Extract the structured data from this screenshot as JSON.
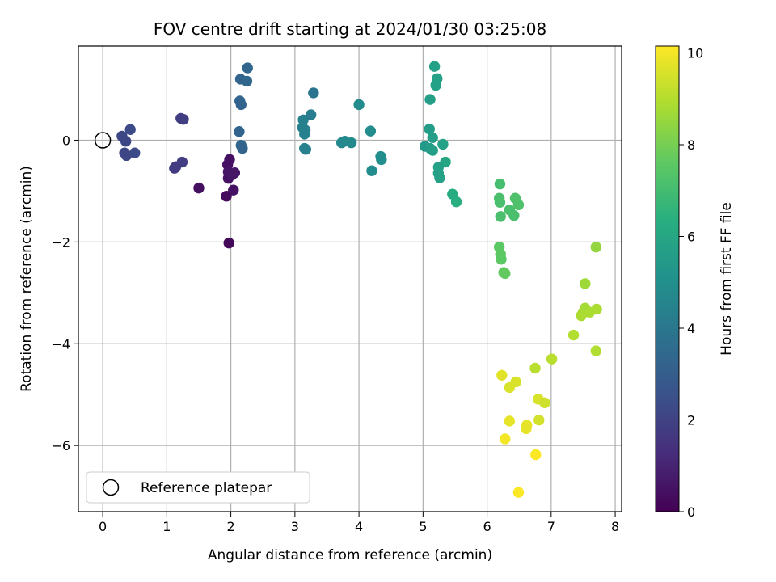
{
  "chart_data": {
    "type": "scatter",
    "title": "FOV centre drift starting at 2024/01/30 03:25:08",
    "xlabel": "Angular distance from reference (arcmin)",
    "ylabel": "Rotation from reference (arcmin)",
    "xlim": [
      -0.38,
      8.1
    ],
    "ylim": [
      -7.3,
      1.85
    ],
    "xticks": [
      0,
      1,
      2,
      3,
      4,
      5,
      6,
      7,
      8
    ],
    "yticks": [
      -6,
      -4,
      -2,
      0
    ],
    "grid": true,
    "legend": {
      "placement": "lower-left",
      "entries": [
        {
          "label": "Reference platepar",
          "marker": "open-circle"
        }
      ]
    },
    "reference_point": {
      "x": 0,
      "y": 0
    },
    "colorbar": {
      "label": "Hours from first FF file",
      "range": [
        0,
        10.15
      ],
      "ticks": [
        0,
        2,
        4,
        6,
        8,
        10
      ],
      "colormap": "viridis"
    },
    "points": [
      {
        "x": 0.3,
        "y": 0.08,
        "c": 2.2
      },
      {
        "x": 0.43,
        "y": 0.21,
        "c": 2.3
      },
      {
        "x": 0.36,
        "y": -0.02,
        "c": 2.2
      },
      {
        "x": 0.34,
        "y": -0.25,
        "c": 2.2
      },
      {
        "x": 0.37,
        "y": -0.3,
        "c": 2.2
      },
      {
        "x": 0.5,
        "y": -0.25,
        "c": 2.3
      },
      {
        "x": 1.22,
        "y": 0.43,
        "c": 1.9
      },
      {
        "x": 1.26,
        "y": 0.41,
        "c": 1.9
      },
      {
        "x": 1.24,
        "y": -0.43,
        "c": 1.9
      },
      {
        "x": 1.14,
        "y": -0.52,
        "c": 1.8
      },
      {
        "x": 1.12,
        "y": -0.55,
        "c": 1.8
      },
      {
        "x": 1.5,
        "y": -0.94,
        "c": 0.4
      },
      {
        "x": 1.98,
        "y": -0.38,
        "c": 0.5
      },
      {
        "x": 1.95,
        "y": -0.48,
        "c": 0.5
      },
      {
        "x": 1.96,
        "y": -0.62,
        "c": 0.6
      },
      {
        "x": 1.96,
        "y": -0.75,
        "c": 0.5
      },
      {
        "x": 2.02,
        "y": -0.68,
        "c": 0.6
      },
      {
        "x": 2.06,
        "y": -0.64,
        "c": 0.6
      },
      {
        "x": 2.04,
        "y": -0.98,
        "c": 0.5
      },
      {
        "x": 1.93,
        "y": -1.1,
        "c": 0.3
      },
      {
        "x": 1.97,
        "y": -2.02,
        "c": 0.2
      },
      {
        "x": 2.26,
        "y": 1.42,
        "c": 3.4
      },
      {
        "x": 2.15,
        "y": 1.2,
        "c": 3.3
      },
      {
        "x": 2.25,
        "y": 1.16,
        "c": 3.4
      },
      {
        "x": 2.14,
        "y": 0.77,
        "c": 3.3
      },
      {
        "x": 2.16,
        "y": 0.7,
        "c": 3.3
      },
      {
        "x": 2.13,
        "y": 0.17,
        "c": 3.3
      },
      {
        "x": 2.16,
        "y": -0.1,
        "c": 3.4
      },
      {
        "x": 2.18,
        "y": -0.16,
        "c": 3.3
      },
      {
        "x": 3.13,
        "y": 0.4,
        "c": 4.4
      },
      {
        "x": 3.12,
        "y": 0.25,
        "c": 4.4
      },
      {
        "x": 3.16,
        "y": 0.2,
        "c": 4.4
      },
      {
        "x": 3.15,
        "y": 0.12,
        "c": 4.4
      },
      {
        "x": 3.25,
        "y": 0.5,
        "c": 4.3
      },
      {
        "x": 3.29,
        "y": 0.93,
        "c": 3.9
      },
      {
        "x": 3.15,
        "y": -0.16,
        "c": 4.4
      },
      {
        "x": 3.17,
        "y": -0.18,
        "c": 4.4
      },
      {
        "x": 3.73,
        "y": -0.05,
        "c": 4.8
      },
      {
        "x": 3.78,
        "y": -0.02,
        "c": 4.8
      },
      {
        "x": 3.88,
        "y": -0.05,
        "c": 4.8
      },
      {
        "x": 4.0,
        "y": 0.7,
        "c": 4.9
      },
      {
        "x": 4.18,
        "y": 0.18,
        "c": 4.9
      },
      {
        "x": 4.2,
        "y": -0.6,
        "c": 4.9
      },
      {
        "x": 4.34,
        "y": -0.32,
        "c": 5.0
      },
      {
        "x": 4.35,
        "y": -0.38,
        "c": 5.0
      },
      {
        "x": 5.18,
        "y": 1.45,
        "c": 5.8
      },
      {
        "x": 5.22,
        "y": 1.21,
        "c": 5.8
      },
      {
        "x": 5.2,
        "y": 1.08,
        "c": 5.8
      },
      {
        "x": 5.11,
        "y": 0.8,
        "c": 5.7
      },
      {
        "x": 5.1,
        "y": 0.22,
        "c": 5.6
      },
      {
        "x": 5.15,
        "y": 0.05,
        "c": 5.7
      },
      {
        "x": 5.03,
        "y": -0.12,
        "c": 5.5
      },
      {
        "x": 5.11,
        "y": -0.16,
        "c": 5.6
      },
      {
        "x": 5.15,
        "y": -0.2,
        "c": 5.7
      },
      {
        "x": 5.31,
        "y": -0.08,
        "c": 5.8
      },
      {
        "x": 5.35,
        "y": -0.43,
        "c": 6.0
      },
      {
        "x": 5.24,
        "y": -0.53,
        "c": 5.8
      },
      {
        "x": 5.24,
        "y": -0.65,
        "c": 5.8
      },
      {
        "x": 5.26,
        "y": -0.74,
        "c": 5.8
      },
      {
        "x": 5.46,
        "y": -1.06,
        "c": 6.3
      },
      {
        "x": 5.52,
        "y": -1.21,
        "c": 6.4
      },
      {
        "x": 6.2,
        "y": -0.86,
        "c": 7.1
      },
      {
        "x": 6.19,
        "y": -1.14,
        "c": 7.2
      },
      {
        "x": 6.2,
        "y": -1.22,
        "c": 7.2
      },
      {
        "x": 6.21,
        "y": -1.5,
        "c": 7.2
      },
      {
        "x": 6.35,
        "y": -1.37,
        "c": 7.2
      },
      {
        "x": 6.42,
        "y": -1.48,
        "c": 7.2
      },
      {
        "x": 6.44,
        "y": -1.14,
        "c": 7.3
      },
      {
        "x": 6.49,
        "y": -1.27,
        "c": 7.3
      },
      {
        "x": 6.19,
        "y": -2.1,
        "c": 7.6
      },
      {
        "x": 6.21,
        "y": -2.24,
        "c": 7.6
      },
      {
        "x": 6.22,
        "y": -2.34,
        "c": 7.6
      },
      {
        "x": 6.26,
        "y": -2.6,
        "c": 7.7
      },
      {
        "x": 6.28,
        "y": -2.62,
        "c": 7.7
      },
      {
        "x": 7.7,
        "y": -2.1,
        "c": 8.5
      },
      {
        "x": 7.53,
        "y": -2.82,
        "c": 8.7
      },
      {
        "x": 7.53,
        "y": -3.3,
        "c": 8.8
      },
      {
        "x": 7.5,
        "y": -3.38,
        "c": 8.8
      },
      {
        "x": 7.6,
        "y": -3.38,
        "c": 8.9
      },
      {
        "x": 7.71,
        "y": -3.32,
        "c": 8.9
      },
      {
        "x": 7.47,
        "y": -3.45,
        "c": 8.9
      },
      {
        "x": 7.35,
        "y": -3.83,
        "c": 9.0
      },
      {
        "x": 7.7,
        "y": -4.14,
        "c": 9.0
      },
      {
        "x": 7.01,
        "y": -4.3,
        "c": 9.1
      },
      {
        "x": 6.75,
        "y": -4.48,
        "c": 9.1
      },
      {
        "x": 6.23,
        "y": -4.62,
        "c": 9.7
      },
      {
        "x": 6.45,
        "y": -4.75,
        "c": 9.6
      },
      {
        "x": 6.35,
        "y": -4.86,
        "c": 9.6
      },
      {
        "x": 6.8,
        "y": -5.09,
        "c": 9.6
      },
      {
        "x": 6.9,
        "y": -5.16,
        "c": 9.4
      },
      {
        "x": 6.81,
        "y": -5.5,
        "c": 9.5
      },
      {
        "x": 6.35,
        "y": -5.52,
        "c": 9.8
      },
      {
        "x": 6.62,
        "y": -5.6,
        "c": 9.8
      },
      {
        "x": 6.61,
        "y": -5.67,
        "c": 9.8
      },
      {
        "x": 6.28,
        "y": -5.87,
        "c": 10.0
      },
      {
        "x": 6.76,
        "y": -6.18,
        "c": 10.1
      },
      {
        "x": 6.49,
        "y": -6.92,
        "c": 10.1
      }
    ]
  }
}
